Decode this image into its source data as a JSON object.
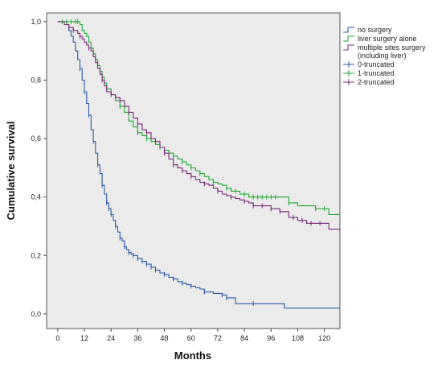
{
  "chart_data": {
    "type": "line",
    "subtype": "kaplan-meier",
    "xlabel": "Months",
    "ylabel": "Cumulative survival",
    "xlim": [
      -5,
      127
    ],
    "ylim": [
      -0.05,
      1.03
    ],
    "x_ticks": [
      0,
      12,
      24,
      36,
      48,
      60,
      72,
      84,
      96,
      108,
      120
    ],
    "x_tick_labels": [
      "0",
      "12",
      "24",
      "36",
      "48",
      "60",
      "72",
      "84",
      "96",
      "108",
      "120"
    ],
    "y_ticks": [
      0,
      0.2,
      0.4,
      0.6,
      0.8,
      1.0
    ],
    "y_tick_labels": [
      "0,0",
      "0,2",
      "0,4",
      "0,6",
      "0,8",
      "1,0"
    ],
    "grid": false,
    "background": "#ebebeb",
    "legend": {
      "position": "right",
      "entries": [
        {
          "label": "no surgery",
          "color": "#2b5aa8",
          "kind": "line"
        },
        {
          "label": "liver surgery alone",
          "color": "#22aa33",
          "kind": "line"
        },
        {
          "label": "multiple sites surgery",
          "label2": "(including liver)",
          "color": "#7a2a7a",
          "kind": "line"
        },
        {
          "label": "0-truncated",
          "color": "#2b5aa8",
          "kind": "censor"
        },
        {
          "label": "1-truncated",
          "color": "#22aa33",
          "kind": "censor"
        },
        {
          "label": "2-truncated",
          "color": "#7a2a7a",
          "kind": "censor"
        }
      ]
    },
    "series": [
      {
        "name": "no surgery",
        "color": "#2b5aa8",
        "x": [
          0,
          2,
          4,
          5,
          6,
          7,
          8,
          9,
          10,
          11,
          12,
          13,
          14,
          15,
          16,
          17,
          18,
          19,
          20,
          21,
          22,
          23,
          24,
          25,
          26,
          27,
          28,
          29,
          30,
          31,
          32,
          33,
          34,
          36,
          38,
          40,
          42,
          44,
          46,
          48,
          50,
          52,
          54,
          56,
          58,
          60,
          62,
          64,
          66,
          70,
          74,
          76,
          80,
          88,
          90,
          102,
          127
        ],
        "y": [
          1.0,
          1.0,
          0.99,
          0.97,
          0.95,
          0.93,
          0.9,
          0.87,
          0.84,
          0.8,
          0.76,
          0.72,
          0.68,
          0.63,
          0.59,
          0.55,
          0.51,
          0.48,
          0.44,
          0.41,
          0.38,
          0.36,
          0.34,
          0.32,
          0.3,
          0.28,
          0.26,
          0.25,
          0.23,
          0.22,
          0.21,
          0.205,
          0.2,
          0.19,
          0.18,
          0.17,
          0.16,
          0.15,
          0.14,
          0.135,
          0.125,
          0.12,
          0.11,
          0.105,
          0.1,
          0.095,
          0.09,
          0.085,
          0.075,
          0.07,
          0.065,
          0.055,
          0.035,
          0.035,
          0.035,
          0.02,
          0.02
        ],
        "censored_x": [
          10,
          12,
          14,
          16,
          18,
          20,
          22,
          23,
          24,
          26,
          28,
          30,
          32,
          34,
          36,
          38,
          40,
          42,
          44,
          48,
          52,
          56,
          60,
          66,
          74,
          76,
          88
        ]
      },
      {
        "name": "liver surgery alone",
        "color": "#22aa33",
        "x": [
          0,
          2,
          4,
          6,
          8,
          9,
          10,
          11,
          12,
          13,
          14,
          15,
          16,
          17,
          18,
          19,
          20,
          21,
          22,
          24,
          26,
          28,
          30,
          32,
          34,
          36,
          38,
          40,
          42,
          44,
          46,
          48,
          50,
          52,
          54,
          56,
          58,
          60,
          62,
          64,
          66,
          68,
          70,
          72,
          74,
          76,
          78,
          80,
          82,
          84,
          86,
          88,
          90,
          96,
          100,
          104,
          108,
          112,
          116,
          120,
          122,
          127
        ],
        "y": [
          1.0,
          1.0,
          1.0,
          1.0,
          1.0,
          1.0,
          0.99,
          0.97,
          0.96,
          0.95,
          0.93,
          0.91,
          0.89,
          0.87,
          0.85,
          0.83,
          0.81,
          0.79,
          0.77,
          0.75,
          0.73,
          0.71,
          0.69,
          0.66,
          0.64,
          0.62,
          0.61,
          0.6,
          0.59,
          0.58,
          0.57,
          0.56,
          0.55,
          0.54,
          0.53,
          0.52,
          0.51,
          0.5,
          0.49,
          0.48,
          0.47,
          0.46,
          0.45,
          0.445,
          0.44,
          0.43,
          0.42,
          0.42,
          0.41,
          0.41,
          0.4,
          0.4,
          0.4,
          0.4,
          0.4,
          0.38,
          0.37,
          0.37,
          0.36,
          0.36,
          0.34,
          0.34
        ],
        "censored_x": [
          2,
          4,
          6,
          8,
          9,
          28,
          36,
          40,
          46,
          48,
          52,
          56,
          60,
          64,
          70,
          76,
          80,
          84,
          88,
          90,
          92,
          94,
          96,
          98,
          104,
          116,
          120
        ]
      },
      {
        "name": "multiple sites surgery (including liver)",
        "color": "#7a2a7a",
        "x": [
          0,
          3,
          5,
          7,
          9,
          10,
          11,
          12,
          13,
          14,
          15,
          16,
          17,
          18,
          19,
          20,
          21,
          22,
          24,
          26,
          28,
          30,
          32,
          34,
          36,
          38,
          40,
          42,
          44,
          46,
          48,
          50,
          52,
          54,
          56,
          58,
          60,
          62,
          64,
          66,
          68,
          70,
          72,
          74,
          76,
          78,
          80,
          82,
          84,
          86,
          88,
          90,
          96,
          100,
          104,
          108,
          112,
          116,
          120,
          122,
          127
        ],
        "y": [
          1.0,
          0.99,
          0.98,
          0.97,
          0.96,
          0.95,
          0.94,
          0.93,
          0.92,
          0.91,
          0.9,
          0.88,
          0.86,
          0.84,
          0.82,
          0.8,
          0.78,
          0.76,
          0.75,
          0.74,
          0.73,
          0.71,
          0.69,
          0.67,
          0.65,
          0.63,
          0.62,
          0.6,
          0.59,
          0.57,
          0.55,
          0.53,
          0.51,
          0.5,
          0.49,
          0.48,
          0.47,
          0.46,
          0.45,
          0.445,
          0.44,
          0.43,
          0.42,
          0.41,
          0.405,
          0.4,
          0.395,
          0.39,
          0.385,
          0.38,
          0.37,
          0.37,
          0.36,
          0.35,
          0.33,
          0.32,
          0.31,
          0.31,
          0.31,
          0.29,
          0.29
        ],
        "censored_x": [
          5,
          7,
          10,
          14,
          20,
          24,
          28,
          32,
          36,
          40,
          44,
          48,
          52,
          56,
          60,
          66,
          72,
          78,
          84,
          88,
          92,
          96,
          100,
          106,
          110,
          114,
          118
        ]
      }
    ]
  }
}
